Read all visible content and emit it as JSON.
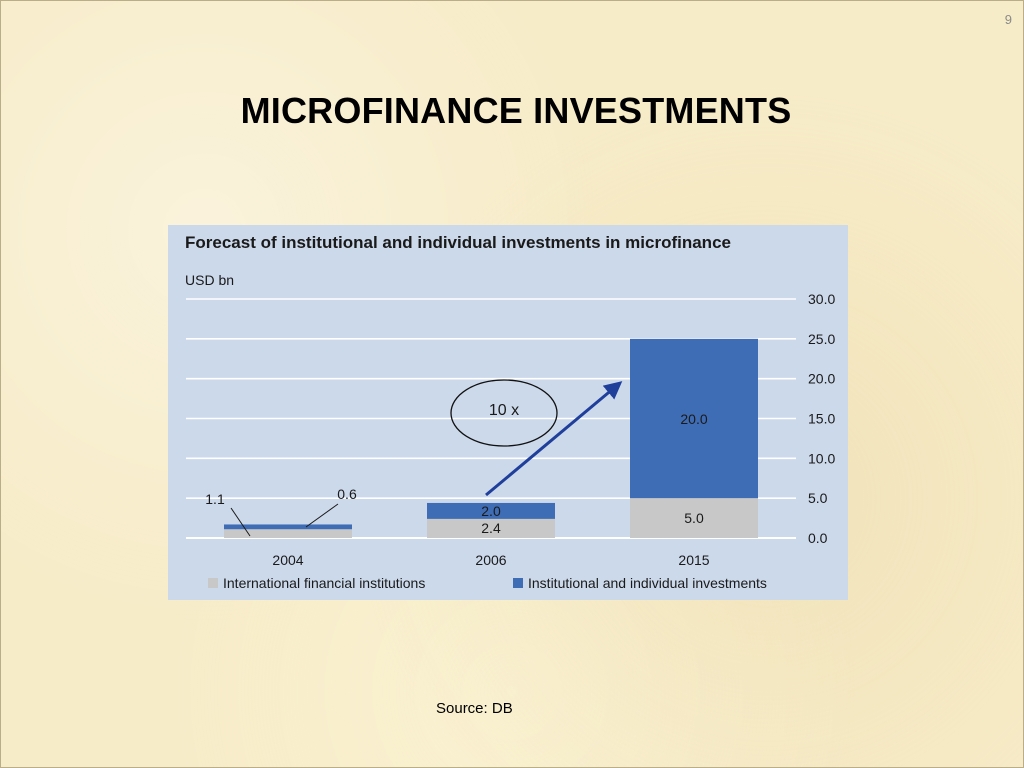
{
  "slide": {
    "number": "9",
    "title": "MICROFINANCE INVESTMENTS",
    "source": "Source: DB"
  },
  "colors": {
    "series_ifi": "#c8c8c8",
    "series_inst": "#3f6db5",
    "panel_bg": "#ccd9eb",
    "arrow": "#1f3f9a"
  },
  "annotation": {
    "text": "10 x"
  },
  "chart_data": {
    "type": "bar",
    "stacked": true,
    "title": "Forecast of institutional and individual investments in microfinance",
    "unit": "USD bn",
    "categories": [
      "2004",
      "2006",
      "2015"
    ],
    "series": [
      {
        "name": "International financial institutions",
        "values": [
          1.1,
          2.4,
          5.0
        ],
        "labels": [
          "1.1",
          "2.4",
          "5.0"
        ]
      },
      {
        "name": "Institutional and individual investments",
        "values": [
          0.6,
          2.0,
          20.0
        ],
        "labels": [
          "0.6",
          "2.0",
          "20.0"
        ]
      }
    ],
    "ylim": [
      0,
      30
    ],
    "yticks": [
      "0.0",
      "5.0",
      "10.0",
      "15.0",
      "20.0",
      "25.0",
      "30.0"
    ],
    "y_axis_side": "right",
    "grid": true,
    "legend_position": "bottom"
  }
}
